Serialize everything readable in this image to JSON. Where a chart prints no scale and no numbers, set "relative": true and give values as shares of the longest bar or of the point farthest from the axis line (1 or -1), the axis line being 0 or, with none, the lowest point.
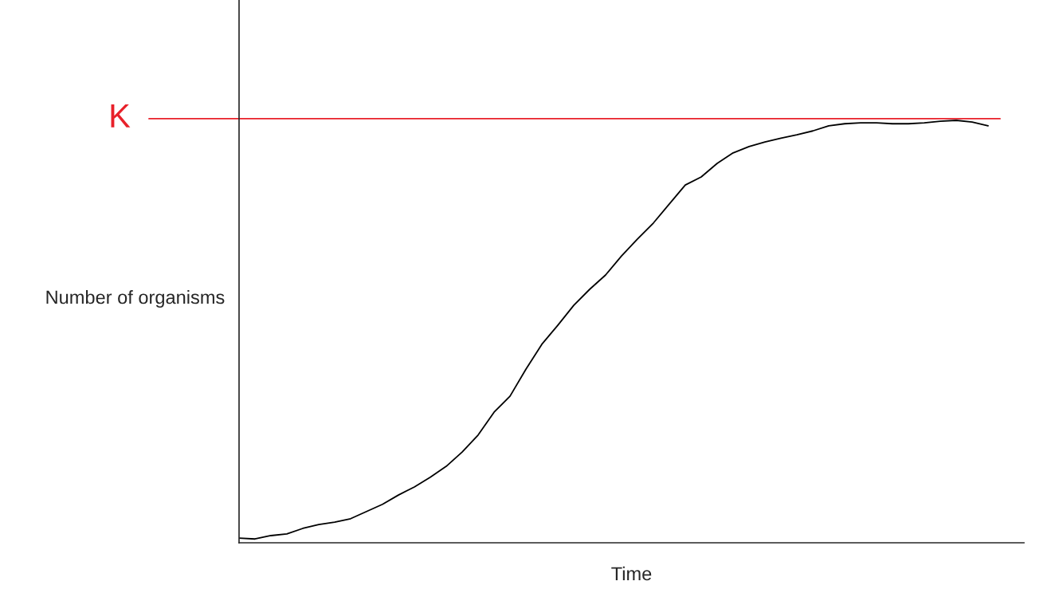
{
  "chart_data": {
    "type": "line",
    "relative": true,
    "xlabel": "Time",
    "ylabel": "Number of organisms",
    "categories": [
      null,
      null,
      null,
      null,
      null,
      null,
      null,
      null,
      null,
      null,
      null,
      null,
      null,
      null,
      null,
      null,
      null,
      null,
      null,
      null,
      null,
      null,
      null,
      null,
      null,
      null,
      null,
      null,
      null,
      null,
      null,
      null,
      null,
      null,
      null,
      null,
      null,
      null,
      null,
      null,
      null,
      null,
      null,
      null,
      null,
      null,
      null,
      null
    ],
    "series": [
      {
        "color": "#000000",
        "values": [
          0.011,
          0.009,
          0.017,
          0.021,
          0.034,
          0.043,
          0.049,
          0.057,
          0.074,
          0.091,
          0.113,
          0.132,
          0.155,
          0.181,
          0.215,
          0.255,
          0.309,
          0.347,
          0.411,
          0.47,
          0.515,
          0.562,
          0.6,
          0.634,
          0.679,
          0.719,
          0.757,
          0.802,
          0.847,
          0.866,
          0.898,
          0.923,
          0.938,
          0.949,
          0.958,
          0.966,
          0.975,
          0.987,
          0.992,
          0.994,
          0.994,
          0.992,
          0.992,
          0.994,
          0.998,
          1.0,
          0.996,
          0.987
        ]
      }
    ],
    "ref_lines": [
      {
        "axis": "y",
        "value": 1.004,
        "label": "K",
        "color": "#e8212a"
      }
    ],
    "grid": false,
    "legend": false
  }
}
